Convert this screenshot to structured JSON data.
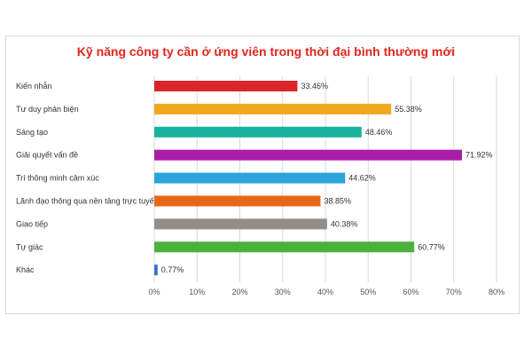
{
  "chart_data": {
    "type": "bar",
    "orientation": "horizontal",
    "title": "Kỹ năng công ty cần ở ứng viên trong thời đại bình thường mới",
    "categories": [
      "Kiến nhẫn",
      "Tư duy phản biện",
      "Sáng tạo",
      "Giải quyết vấn đề",
      "Trí thông minh cảm xúc",
      "Lãnh đạo thông qua nền tảng trực tuyến",
      "Giao tiếp",
      "Tự giác",
      "Khác"
    ],
    "values": [
      33.46,
      55.38,
      48.46,
      71.92,
      44.62,
      38.85,
      40.38,
      60.77,
      0.77
    ],
    "value_labels": [
      "33.46%",
      "55.38%",
      "48.46%",
      "71.92%",
      "44.62%",
      "38.85%",
      "40.38%",
      "60.77%",
      "0.77%"
    ],
    "colors": [
      "#d9262a",
      "#f0a81c",
      "#18b3a0",
      "#a91ea8",
      "#2ba3dc",
      "#e6681b",
      "#968b86",
      "#4cb13a",
      "#3a6fc4"
    ],
    "xlim": [
      0,
      80
    ],
    "x_ticks": [
      "0%",
      "10%",
      "20%",
      "30%",
      "40%",
      "50%",
      "60%",
      "70%",
      "80%"
    ],
    "grid": true,
    "legend": "none",
    "title_color": "#e0251b"
  }
}
